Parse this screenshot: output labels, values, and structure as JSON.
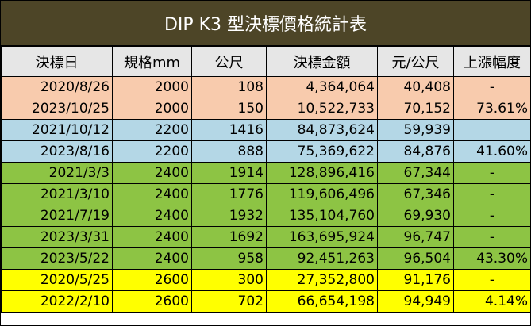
{
  "title": "DIP K3 型決標價格統計表",
  "headers": [
    "決標日",
    "規格mm",
    "公尺",
    "決標金額",
    "元/公尺",
    "上漲幅度"
  ],
  "colors": {
    "title_bg": "#4d4527",
    "header_bg": "#e6e6e6",
    "spec_2000": "#f8cbad",
    "spec_2200": "#b4d7e6",
    "spec_2400": "#8dc444",
    "spec_2600": "#ffff00"
  },
  "rows": [
    {
      "date": "2020/8/26",
      "spec": "2000",
      "meters": "108",
      "amount": "4,364,064",
      "per_meter": "40,408",
      "increase": "-",
      "group": "spec_2000"
    },
    {
      "date": "2023/10/25",
      "spec": "2000",
      "meters": "150",
      "amount": "10,522,733",
      "per_meter": "70,152",
      "increase": "73.61%",
      "group": "spec_2000"
    },
    {
      "date": "2021/10/12",
      "spec": "2200",
      "meters": "1416",
      "amount": "84,873,624",
      "per_meter": "59,939",
      "increase": "",
      "group": "spec_2200"
    },
    {
      "date": "2023/8/16",
      "spec": "2200",
      "meters": "888",
      "amount": "75,369,622",
      "per_meter": "84,876",
      "increase": "41.60%",
      "group": "spec_2200"
    },
    {
      "date": "2021/3/3",
      "spec": "2400",
      "meters": "1914",
      "amount": "128,896,416",
      "per_meter": "67,344",
      "increase": "-",
      "group": "spec_2400"
    },
    {
      "date": "2021/3/10",
      "spec": "2400",
      "meters": "1776",
      "amount": "119,606,496",
      "per_meter": "67,346",
      "increase": "-",
      "group": "spec_2400"
    },
    {
      "date": "2021/7/19",
      "spec": "2400",
      "meters": "1932",
      "amount": "135,104,760",
      "per_meter": "69,930",
      "increase": "-",
      "group": "spec_2400"
    },
    {
      "date": "2023/3/31",
      "spec": "2400",
      "meters": "1692",
      "amount": "163,695,924",
      "per_meter": "96,747",
      "increase": "-",
      "group": "spec_2400"
    },
    {
      "date": "2023/5/22",
      "spec": "2400",
      "meters": "958",
      "amount": "92,451,263",
      "per_meter": "96,504",
      "increase": "43.30%",
      "group": "spec_2400"
    },
    {
      "date": "2020/5/25",
      "spec": "2600",
      "meters": "300",
      "amount": "27,352,800",
      "per_meter": "91,176",
      "increase": "-",
      "group": "spec_2600"
    },
    {
      "date": "2022/2/10",
      "spec": "2600",
      "meters": "702",
      "amount": "66,654,198",
      "per_meter": "94,949",
      "increase": "4.14%",
      "group": "spec_2600"
    }
  ]
}
